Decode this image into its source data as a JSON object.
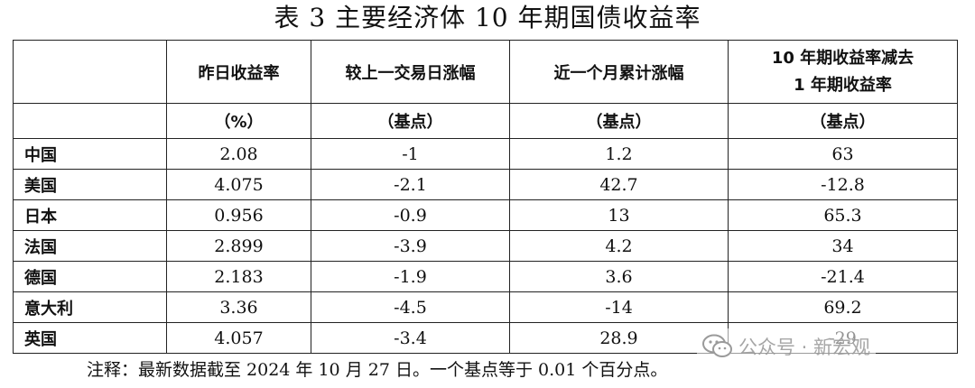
{
  "title": "表 3 主要经济体 10 年期国债收益率",
  "table": {
    "headers": {
      "col1": "昨日收益率",
      "col2": "较上一交易日涨幅",
      "col3": "近一个月累计涨幅",
      "col4_line1": "10 年期收益率减去",
      "col4_line2": "1 年期收益率"
    },
    "units": {
      "col1": "（%）",
      "col2": "（基点）",
      "col3": "（基点）",
      "col4": "（基点）"
    },
    "rows": [
      {
        "country": "中国",
        "yield": "2.08",
        "daily": "-1",
        "monthly": "1.2",
        "spread": "63"
      },
      {
        "country": "美国",
        "yield": "4.075",
        "daily": "-2.1",
        "monthly": "42.7",
        "spread": "-12.8"
      },
      {
        "country": "日本",
        "yield": "0.956",
        "daily": "-0.9",
        "monthly": "13",
        "spread": "65.3"
      },
      {
        "country": "法国",
        "yield": "2.899",
        "daily": "-3.9",
        "monthly": "4.2",
        "spread": "34"
      },
      {
        "country": "德国",
        "yield": "2.183",
        "daily": "-1.9",
        "monthly": "3.6",
        "spread": "-21.4"
      },
      {
        "country": "意大利",
        "yield": "3.36",
        "daily": "-4.5",
        "monthly": "-14",
        "spread": "69.2"
      },
      {
        "country": "英国",
        "yield": "4.057",
        "daily": "-3.4",
        "monthly": "28.9",
        "spread": "-29"
      }
    ]
  },
  "note": "注释：最新数据截至 2024 年 10 月 27 日。一个基点等于 0.01 个百分点。",
  "watermark": {
    "text": "公众号 · 新宏观",
    "icon": "wechat-icon"
  }
}
